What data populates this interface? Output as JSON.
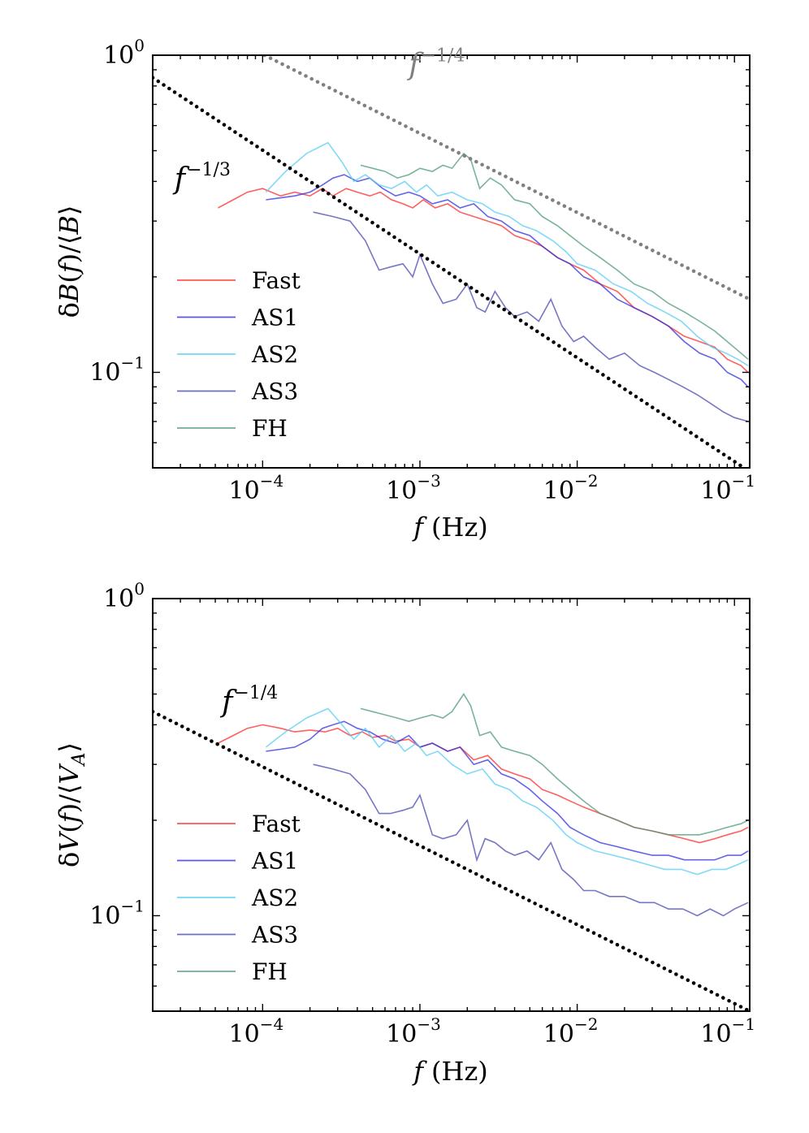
{
  "chart_data": [
    {
      "type": "line",
      "ylabel": "δB(f)/⟨B⟩",
      "xlabel": "f (Hz)",
      "xscale": "log",
      "yscale": "log",
      "xlim": [
        2e-05,
        0.125
      ],
      "ylim": [
        0.05,
        1.0
      ],
      "xticks": [
        {
          "value": 0.0001,
          "base": "10",
          "exp": "−4"
        },
        {
          "value": 0.001,
          "base": "10",
          "exp": "−3"
        },
        {
          "value": 0.01,
          "base": "10",
          "exp": "−2"
        },
        {
          "value": 0.1,
          "base": "10",
          "exp": "−1"
        }
      ],
      "yticks": [
        {
          "value": 1.0,
          "base": "10",
          "exp": "0"
        },
        {
          "value": 0.1,
          "base": "10",
          "exp": "−1"
        }
      ],
      "legend_position": "lower-left",
      "annotations": [
        {
          "base": "f",
          "exp": "−1/4",
          "color": "#808080",
          "x": 0.00085,
          "y": 0.87
        },
        {
          "base": "f",
          "exp": "−1/3",
          "color": "#000000",
          "x": 2.75e-05,
          "y": 0.38
        }
      ],
      "reference_lines": [
        {
          "slope": -0.25,
          "x0": 0.000103,
          "y0": 1.0,
          "x1": 0.125,
          "y1": 0.17,
          "color": "#808080"
        },
        {
          "slope": -0.3333,
          "x0": 2e-05,
          "y0": 0.85,
          "x1": 0.115,
          "y1": 0.05,
          "color": "#000000"
        }
      ],
      "series": [
        {
          "name": "Fast",
          "color": "#ff2a2a",
          "x": [
            5.2e-05,
            6.5e-05,
            8e-05,
            0.0001,
            0.00013,
            0.00016,
            0.0002,
            0.00024,
            0.00028,
            0.00034,
            0.0004,
            0.00048,
            0.00056,
            0.00066,
            0.00078,
            0.0009,
            0.00105,
            0.00125,
            0.0015,
            0.0018,
            0.0022,
            0.0027,
            0.0033,
            0.004,
            0.005,
            0.006,
            0.0075,
            0.009,
            0.011,
            0.014,
            0.018,
            0.023,
            0.03,
            0.038,
            0.048,
            0.06,
            0.075,
            0.09,
            0.11,
            0.122
          ],
          "y": [
            0.33,
            0.35,
            0.37,
            0.38,
            0.36,
            0.37,
            0.36,
            0.38,
            0.36,
            0.38,
            0.37,
            0.36,
            0.37,
            0.35,
            0.34,
            0.33,
            0.35,
            0.33,
            0.34,
            0.32,
            0.31,
            0.3,
            0.29,
            0.27,
            0.26,
            0.25,
            0.23,
            0.22,
            0.21,
            0.19,
            0.18,
            0.16,
            0.15,
            0.14,
            0.13,
            0.125,
            0.12,
            0.11,
            0.105,
            0.1
          ]
        },
        {
          "name": "AS1",
          "color": "#3030e0",
          "x": [
            0.000105,
            0.00013,
            0.00016,
            0.0002,
            0.00024,
            0.00028,
            0.00033,
            0.0004,
            0.00048,
            0.00058,
            0.0007,
            0.00085,
            0.001,
            0.0012,
            0.0015,
            0.0018,
            0.0022,
            0.0027,
            0.0033,
            0.004,
            0.005,
            0.006,
            0.0075,
            0.009,
            0.011,
            0.014,
            0.018,
            0.023,
            0.03,
            0.038,
            0.048,
            0.06,
            0.075,
            0.09,
            0.11,
            0.122
          ],
          "y": [
            0.35,
            0.355,
            0.36,
            0.37,
            0.39,
            0.41,
            0.42,
            0.4,
            0.41,
            0.38,
            0.36,
            0.37,
            0.36,
            0.34,
            0.35,
            0.33,
            0.34,
            0.31,
            0.3,
            0.28,
            0.27,
            0.25,
            0.23,
            0.22,
            0.2,
            0.19,
            0.17,
            0.16,
            0.15,
            0.14,
            0.125,
            0.115,
            0.11,
            0.1,
            0.095,
            0.09
          ]
        },
        {
          "name": "AS2",
          "color": "#55ccf5",
          "x": [
            0.000105,
            0.00014,
            0.00019,
            0.00026,
            0.00032,
            0.00038,
            0.00045,
            0.00055,
            0.00066,
            0.0008,
            0.00095,
            0.0011,
            0.0013,
            0.0016,
            0.002,
            0.0025,
            0.003,
            0.0037,
            0.0045,
            0.0055,
            0.007,
            0.0085,
            0.01,
            0.013,
            0.017,
            0.022,
            0.028,
            0.036,
            0.046,
            0.058,
            0.072,
            0.088,
            0.105,
            0.122
          ],
          "y": [
            0.37,
            0.43,
            0.49,
            0.53,
            0.46,
            0.4,
            0.42,
            0.39,
            0.38,
            0.4,
            0.37,
            0.39,
            0.36,
            0.37,
            0.35,
            0.34,
            0.32,
            0.31,
            0.29,
            0.28,
            0.26,
            0.24,
            0.22,
            0.21,
            0.19,
            0.18,
            0.165,
            0.155,
            0.145,
            0.13,
            0.12,
            0.115,
            0.11,
            0.105
          ]
        },
        {
          "name": "AS3",
          "color": "#4848b0",
          "x": [
            0.00021,
            0.00028,
            0.00036,
            0.00045,
            0.00055,
            0.00065,
            0.00078,
            0.0009,
            0.001,
            0.0012,
            0.0014,
            0.0017,
            0.002,
            0.0023,
            0.0026,
            0.003,
            0.0035,
            0.004,
            0.0048,
            0.0057,
            0.0068,
            0.008,
            0.0095,
            0.011,
            0.013,
            0.016,
            0.02,
            0.025,
            0.031,
            0.038,
            0.047,
            0.058,
            0.07,
            0.085,
            0.1,
            0.122
          ],
          "y": [
            0.32,
            0.31,
            0.3,
            0.26,
            0.21,
            0.215,
            0.22,
            0.2,
            0.235,
            0.19,
            0.165,
            0.17,
            0.19,
            0.16,
            0.155,
            0.18,
            0.16,
            0.15,
            0.155,
            0.145,
            0.17,
            0.14,
            0.125,
            0.13,
            0.12,
            0.11,
            0.115,
            0.105,
            0.1,
            0.095,
            0.09,
            0.085,
            0.08,
            0.075,
            0.072,
            0.07
          ]
        },
        {
          "name": "FH",
          "color": "#4c9a78",
          "x": [
            0.00042,
            0.0005,
            0.0006,
            0.00072,
            0.00085,
            0.001,
            0.0012,
            0.0014,
            0.0016,
            0.0019,
            0.0021,
            0.0024,
            0.0028,
            0.0033,
            0.004,
            0.005,
            0.006,
            0.0075,
            0.009,
            0.011,
            0.014,
            0.018,
            0.023,
            0.03,
            0.038,
            0.048,
            0.06,
            0.075,
            0.09,
            0.11,
            0.122
          ],
          "y": [
            0.45,
            0.44,
            0.43,
            0.41,
            0.42,
            0.44,
            0.43,
            0.45,
            0.44,
            0.49,
            0.47,
            0.38,
            0.41,
            0.39,
            0.35,
            0.34,
            0.31,
            0.29,
            0.27,
            0.25,
            0.23,
            0.21,
            0.19,
            0.18,
            0.165,
            0.155,
            0.145,
            0.135,
            0.125,
            0.115,
            0.11
          ]
        }
      ]
    },
    {
      "type": "line",
      "ylabel": "δV(f)/⟨V_A⟩",
      "xlabel": "f (Hz)",
      "xscale": "log",
      "yscale": "log",
      "xlim": [
        2e-05,
        0.125
      ],
      "ylim": [
        0.05,
        1.0
      ],
      "xticks": [
        {
          "value": 0.0001,
          "base": "10",
          "exp": "−4"
        },
        {
          "value": 0.001,
          "base": "10",
          "exp": "−3"
        },
        {
          "value": 0.01,
          "base": "10",
          "exp": "−2"
        },
        {
          "value": 0.1,
          "base": "10",
          "exp": "−1"
        }
      ],
      "yticks": [
        {
          "value": 1.0,
          "base": "10",
          "exp": "0"
        },
        {
          "value": 0.1,
          "base": "10",
          "exp": "−1"
        }
      ],
      "legend_position": "lower-left",
      "annotations": [
        {
          "base": "f",
          "exp": "−1/4",
          "color": "#000000",
          "x": 5.5e-05,
          "y": 0.44
        }
      ],
      "reference_lines": [
        {
          "slope": -0.25,
          "x0": 2e-05,
          "y0": 0.44,
          "x1": 0.125,
          "y1": 0.05,
          "color": "#000000"
        }
      ],
      "series": [
        {
          "name": "Fast",
          "color": "#ff2a2a",
          "x": [
            5.2e-05,
            6.5e-05,
            8e-05,
            0.0001,
            0.00013,
            0.00016,
            0.0002,
            0.00025,
            0.0003,
            0.00036,
            0.00043,
            0.0005,
            0.0006,
            0.0007,
            0.00085,
            0.001,
            0.0012,
            0.0015,
            0.0018,
            0.0022,
            0.0027,
            0.0033,
            0.004,
            0.005,
            0.006,
            0.0075,
            0.009,
            0.011,
            0.014,
            0.018,
            0.023,
            0.03,
            0.038,
            0.048,
            0.06,
            0.075,
            0.09,
            0.11,
            0.122
          ],
          "y": [
            0.35,
            0.37,
            0.39,
            0.4,
            0.39,
            0.38,
            0.385,
            0.38,
            0.39,
            0.37,
            0.38,
            0.365,
            0.37,
            0.355,
            0.36,
            0.34,
            0.35,
            0.33,
            0.34,
            0.31,
            0.32,
            0.29,
            0.28,
            0.27,
            0.25,
            0.24,
            0.23,
            0.22,
            0.21,
            0.2,
            0.19,
            0.185,
            0.18,
            0.175,
            0.17,
            0.175,
            0.18,
            0.185,
            0.19
          ]
        },
        {
          "name": "AS1",
          "color": "#3030e0",
          "x": [
            0.000105,
            0.00013,
            0.00016,
            0.0002,
            0.00024,
            0.00028,
            0.00033,
            0.0004,
            0.00048,
            0.00058,
            0.0007,
            0.00085,
            0.001,
            0.0012,
            0.0015,
            0.0018,
            0.0022,
            0.0027,
            0.0033,
            0.004,
            0.005,
            0.006,
            0.0075,
            0.009,
            0.011,
            0.014,
            0.018,
            0.023,
            0.03,
            0.038,
            0.048,
            0.06,
            0.075,
            0.09,
            0.11,
            0.122
          ],
          "y": [
            0.33,
            0.335,
            0.34,
            0.36,
            0.39,
            0.4,
            0.41,
            0.39,
            0.38,
            0.36,
            0.35,
            0.37,
            0.34,
            0.35,
            0.33,
            0.34,
            0.3,
            0.31,
            0.28,
            0.27,
            0.25,
            0.23,
            0.21,
            0.19,
            0.18,
            0.17,
            0.165,
            0.16,
            0.155,
            0.155,
            0.15,
            0.15,
            0.15,
            0.155,
            0.155,
            0.16
          ]
        },
        {
          "name": "AS2",
          "color": "#55ccf5",
          "x": [
            0.000105,
            0.00014,
            0.00019,
            0.00026,
            0.00032,
            0.00038,
            0.00045,
            0.00055,
            0.00066,
            0.0008,
            0.00095,
            0.0011,
            0.0013,
            0.0016,
            0.002,
            0.0025,
            0.003,
            0.0037,
            0.0045,
            0.0055,
            0.007,
            0.0085,
            0.01,
            0.013,
            0.017,
            0.022,
            0.028,
            0.036,
            0.046,
            0.058,
            0.072,
            0.088,
            0.105,
            0.122
          ],
          "y": [
            0.34,
            0.38,
            0.42,
            0.45,
            0.4,
            0.36,
            0.39,
            0.34,
            0.37,
            0.33,
            0.35,
            0.32,
            0.33,
            0.3,
            0.28,
            0.29,
            0.26,
            0.25,
            0.23,
            0.22,
            0.2,
            0.18,
            0.17,
            0.16,
            0.155,
            0.15,
            0.145,
            0.14,
            0.14,
            0.135,
            0.14,
            0.14,
            0.145,
            0.15
          ]
        },
        {
          "name": "AS3",
          "color": "#4848b0",
          "x": [
            0.00021,
            0.00028,
            0.00036,
            0.00045,
            0.00055,
            0.00065,
            0.00078,
            0.0009,
            0.001,
            0.0012,
            0.0014,
            0.0017,
            0.002,
            0.0023,
            0.0026,
            0.003,
            0.0035,
            0.004,
            0.0048,
            0.0057,
            0.0068,
            0.008,
            0.0095,
            0.011,
            0.013,
            0.016,
            0.02,
            0.025,
            0.031,
            0.038,
            0.047,
            0.058,
            0.07,
            0.085,
            0.1,
            0.122
          ],
          "y": [
            0.3,
            0.29,
            0.28,
            0.25,
            0.21,
            0.21,
            0.215,
            0.22,
            0.24,
            0.18,
            0.175,
            0.18,
            0.2,
            0.15,
            0.175,
            0.17,
            0.16,
            0.155,
            0.16,
            0.15,
            0.17,
            0.14,
            0.13,
            0.12,
            0.12,
            0.115,
            0.115,
            0.11,
            0.11,
            0.105,
            0.105,
            0.1,
            0.105,
            0.1,
            0.105,
            0.11
          ]
        },
        {
          "name": "FH",
          "color": "#4c9a78",
          "x": [
            0.00042,
            0.0005,
            0.0006,
            0.00072,
            0.00085,
            0.001,
            0.0012,
            0.0014,
            0.0016,
            0.0019,
            0.0021,
            0.0024,
            0.0028,
            0.0033,
            0.004,
            0.005,
            0.006,
            0.0075,
            0.009,
            0.011,
            0.014,
            0.018,
            0.023,
            0.03,
            0.038,
            0.048,
            0.06,
            0.075,
            0.09,
            0.11,
            0.122
          ],
          "y": [
            0.45,
            0.44,
            0.43,
            0.42,
            0.41,
            0.42,
            0.43,
            0.42,
            0.44,
            0.5,
            0.46,
            0.37,
            0.38,
            0.34,
            0.33,
            0.32,
            0.3,
            0.27,
            0.25,
            0.23,
            0.21,
            0.2,
            0.19,
            0.185,
            0.18,
            0.18,
            0.18,
            0.185,
            0.19,
            0.195,
            0.2
          ]
        }
      ]
    }
  ]
}
